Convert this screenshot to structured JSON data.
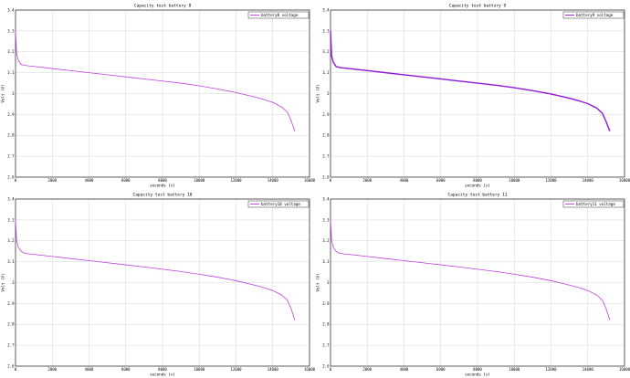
{
  "chart_data": [
    {
      "type": "line",
      "title": "Capacity test battery 8",
      "xlabel": "seconds (s)",
      "ylabel": "Volt (V)",
      "xlim": [
        0,
        16000
      ],
      "ylim": [
        2.6,
        3.4
      ],
      "xticks": [
        "0",
        "2000",
        "4000",
        "6000",
        "8000",
        "10000",
        "12000",
        "14000",
        "16000"
      ],
      "yticks": [
        "2.6",
        "2.7",
        "2.8",
        "2.9",
        "3",
        "3.1",
        "3.2",
        "3.3",
        "3.4"
      ],
      "grid": true,
      "legend_position": "top-right",
      "color": "#c040e0",
      "series": [
        {
          "name": "battery8 voltage",
          "x": [
            0,
            60,
            150,
            300,
            500,
            1000,
            2000,
            3000,
            4000,
            5000,
            6000,
            7000,
            8000,
            9000,
            10000,
            11000,
            12000,
            13000,
            13500,
            14000,
            14500,
            14800,
            15000,
            15200
          ],
          "y": [
            3.3,
            3.19,
            3.16,
            3.14,
            3.135,
            3.13,
            3.12,
            3.11,
            3.1,
            3.09,
            3.08,
            3.07,
            3.06,
            3.05,
            3.037,
            3.022,
            3.005,
            2.984,
            2.972,
            2.958,
            2.935,
            2.91,
            2.87,
            2.82
          ]
        }
      ]
    },
    {
      "type": "line",
      "title": "Capacity test battery 9",
      "xlabel": "seconds (s)",
      "ylabel": "Volt (V)",
      "xlim": [
        0,
        16000
      ],
      "ylim": [
        2.6,
        3.4
      ],
      "xticks": [
        "0",
        "2000",
        "4000",
        "6000",
        "8000",
        "10000",
        "12000",
        "14000",
        "16000"
      ],
      "yticks": [
        "2.6",
        "2.7",
        "2.8",
        "2.9",
        "3",
        "3.1",
        "3.2",
        "3.3",
        "3.4"
      ],
      "grid": true,
      "legend_position": "top-right",
      "color": "#9018d8",
      "series": [
        {
          "name": "battery9 voltage",
          "x": [
            0,
            60,
            150,
            300,
            500,
            1000,
            2000,
            3000,
            4000,
            5000,
            6000,
            7000,
            8000,
            9000,
            10000,
            11000,
            12000,
            13000,
            13500,
            14000,
            14500,
            14800,
            15000,
            15200
          ],
          "y": [
            3.3,
            3.18,
            3.15,
            3.13,
            3.125,
            3.12,
            3.11,
            3.1,
            3.09,
            3.08,
            3.07,
            3.06,
            3.05,
            3.04,
            3.028,
            3.014,
            2.998,
            2.978,
            2.966,
            2.952,
            2.93,
            2.905,
            2.865,
            2.82
          ]
        }
      ]
    },
    {
      "type": "line",
      "title": "Capacity test battery 10",
      "xlabel": "seconds (s)",
      "ylabel": "Volt (V)",
      "xlim": [
        0,
        16000
      ],
      "ylim": [
        2.6,
        3.4
      ],
      "xticks": [
        "0",
        "2000",
        "4000",
        "6000",
        "8000",
        "10000",
        "12000",
        "14000",
        "16000"
      ],
      "yticks": [
        "2.6",
        "2.7",
        "2.8",
        "2.9",
        "3",
        "3.1",
        "3.2",
        "3.3",
        "3.4"
      ],
      "grid": true,
      "legend_position": "top-right",
      "color": "#c040e0",
      "series": [
        {
          "name": "battery10 voltage",
          "x": [
            0,
            60,
            150,
            300,
            500,
            1000,
            2000,
            3000,
            4000,
            5000,
            6000,
            7000,
            8000,
            9000,
            10000,
            11000,
            12000,
            13000,
            13500,
            14000,
            14500,
            14800,
            15000,
            15200
          ],
          "y": [
            3.3,
            3.2,
            3.17,
            3.15,
            3.14,
            3.135,
            3.125,
            3.115,
            3.105,
            3.095,
            3.085,
            3.075,
            3.064,
            3.053,
            3.04,
            3.026,
            3.009,
            2.988,
            2.976,
            2.962,
            2.94,
            2.915,
            2.875,
            2.82
          ]
        }
      ]
    },
    {
      "type": "line",
      "title": "Capacity test battery 11",
      "xlabel": "seconds (s)",
      "ylabel": "Volt (V)",
      "xlim": [
        0,
        16000
      ],
      "ylim": [
        2.6,
        3.4
      ],
      "xticks": [
        "0",
        "2000",
        "4000",
        "6000",
        "8000",
        "10000",
        "12000",
        "14000",
        "16000"
      ],
      "yticks": [
        "2.6",
        "2.7",
        "2.8",
        "2.9",
        "3",
        "3.1",
        "3.2",
        "3.3",
        "3.4"
      ],
      "grid": true,
      "legend_position": "top-right",
      "color": "#c040e0",
      "series": [
        {
          "name": "battery11 voltage",
          "x": [
            0,
            60,
            150,
            300,
            500,
            1000,
            2000,
            3000,
            4000,
            5000,
            6000,
            7000,
            8000,
            9000,
            10000,
            11000,
            12000,
            13000,
            13500,
            14000,
            14500,
            14800,
            15000,
            15200
          ],
          "y": [
            3.3,
            3.2,
            3.17,
            3.15,
            3.14,
            3.135,
            3.125,
            3.115,
            3.105,
            3.095,
            3.085,
            3.075,
            3.064,
            3.053,
            3.04,
            3.026,
            3.009,
            2.988,
            2.976,
            2.962,
            2.94,
            2.915,
            2.875,
            2.82
          ]
        }
      ]
    }
  ]
}
